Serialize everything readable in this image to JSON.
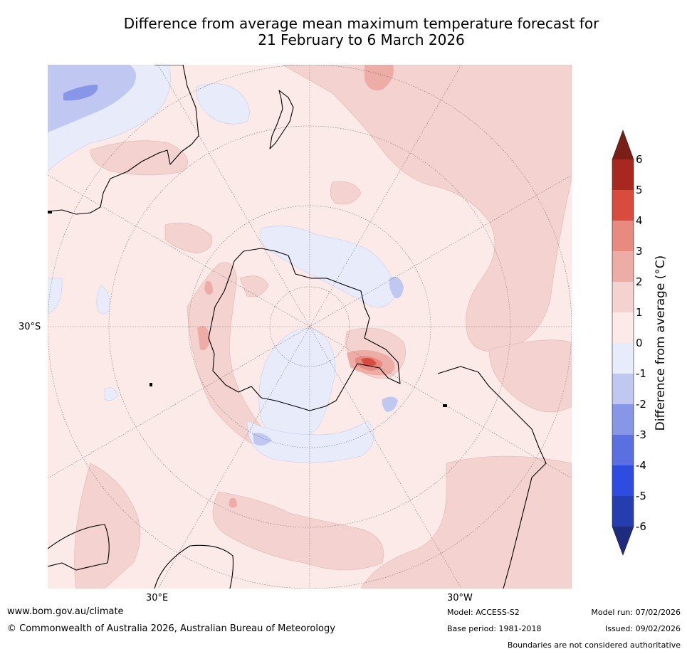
{
  "title": {
    "line1": "Difference from average mean maximum temperature forecast for",
    "line2": "21 February to 6 March 2026"
  },
  "map": {
    "projection": "south polar stereographic",
    "longitude_labels": [
      "30°E",
      "30°W"
    ],
    "latitude_labels": [
      "30°S"
    ]
  },
  "colorbar": {
    "label": "Difference from average (°C)",
    "ticks": [
      "6",
      "5",
      "4",
      "3",
      "2",
      "1",
      "0",
      "-1",
      "-2",
      "-3",
      "-4",
      "-5",
      "-6"
    ],
    "colors": {
      "above_6": "#7a1f17",
      "5_to_6": "#a8281f",
      "4_to_5": "#d84b3e",
      "3_to_4": "#e88a80",
      "2_to_3": "#edaca6",
      "1_to_2": "#f3d2cf",
      "0_to_1": "#fbeae8",
      "neg1_to_0": "#e8ebfa",
      "neg2_to_neg1": "#c0c8f2",
      "neg3_to_neg2": "#8896e8",
      "neg4_to_neg3": "#5a6fe0",
      "neg5_to_neg4": "#2e4de0",
      "neg6_to_neg5": "#263db0",
      "below_neg6": "#1e2b7e"
    }
  },
  "footer": {
    "website": "www.bom.gov.au/climate",
    "copyright": "© Commonwealth of Australia 2026, Australian Bureau of Meteorology",
    "model": "Model: ACCESS-S2",
    "base_period": "Base period: 1981-2018",
    "model_run": "Model run: 07/02/2026",
    "issued": "Issued: 09/02/2026",
    "disclaimer": "Boundaries are not considered authoritative"
  }
}
